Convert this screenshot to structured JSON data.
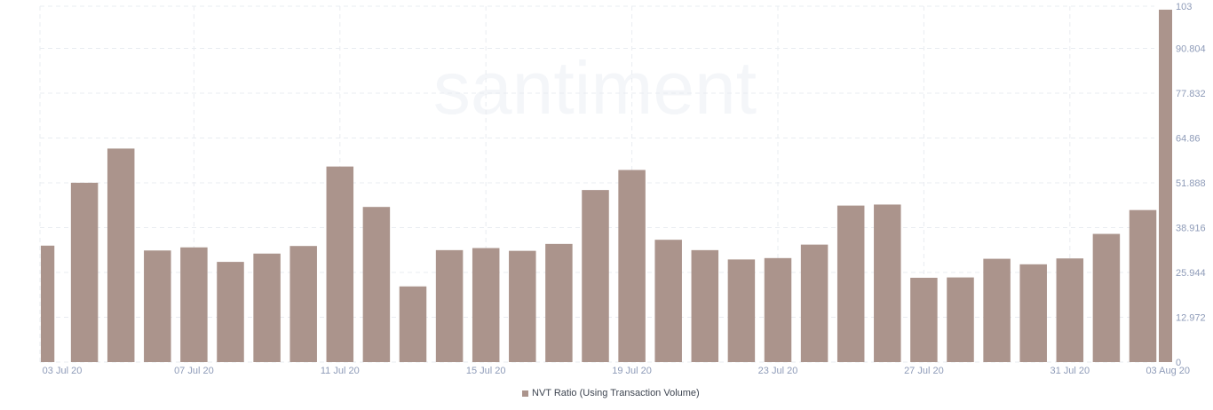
{
  "watermark": "santiment",
  "legend": {
    "label": "NVT Ratio (Using Transaction Volume)"
  },
  "colors": {
    "bar": "#ab948c",
    "grid": "#e9ecf1",
    "tick": "#8e9bb8",
    "text": "#3d4450"
  },
  "chart_data": {
    "type": "bar",
    "grid": true,
    "legend_position": "bottom-center",
    "y_axis_side": "right",
    "ylim": [
      0,
      103
    ],
    "y_ticks": [
      "0",
      "12.972",
      "25.944",
      "38.916",
      "51.888",
      "64.86",
      "77.832",
      "90.804",
      "103"
    ],
    "x_tick_labels": [
      {
        "date": "2020-07-03",
        "label": "03 Jul 20"
      },
      {
        "date": "2020-07-07",
        "label": "07 Jul 20"
      },
      {
        "date": "2020-07-11",
        "label": "11 Jul 20"
      },
      {
        "date": "2020-07-15",
        "label": "15 Jul 20"
      },
      {
        "date": "2020-07-19",
        "label": "19 Jul 20"
      },
      {
        "date": "2020-07-23",
        "label": "23 Jul 20"
      },
      {
        "date": "2020-07-27",
        "label": "27 Jul 20"
      },
      {
        "date": "2020-07-31",
        "label": "31 Jul 20"
      },
      {
        "date": "2020-08-03",
        "label": "03 Aug 20"
      }
    ],
    "series": [
      {
        "name": "NVT Ratio (Using Transaction Volume)",
        "x": [
          "2020-07-03",
          "2020-07-04",
          "2020-07-05",
          "2020-07-06",
          "2020-07-07",
          "2020-07-08",
          "2020-07-09",
          "2020-07-10",
          "2020-07-11",
          "2020-07-12",
          "2020-07-13",
          "2020-07-14",
          "2020-07-15",
          "2020-07-16",
          "2020-07-17",
          "2020-07-18",
          "2020-07-19",
          "2020-07-20",
          "2020-07-21",
          "2020-07-22",
          "2020-07-23",
          "2020-07-24",
          "2020-07-25",
          "2020-07-26",
          "2020-07-27",
          "2020-07-28",
          "2020-07-29",
          "2020-07-30",
          "2020-07-31",
          "2020-08-01",
          "2020-08-02",
          "2020-08-03"
        ],
        "values": [
          33.7,
          51.9,
          61.8,
          32.3,
          33.2,
          29.0,
          31.4,
          33.6,
          56.6,
          44.9,
          21.9,
          32.4,
          33.0,
          32.2,
          34.2,
          49.8,
          55.6,
          35.4,
          32.4,
          29.7,
          30.1,
          34.0,
          45.3,
          45.6,
          24.4,
          24.5,
          29.9,
          28.3,
          30.0,
          37.1,
          44.0,
          102.0
        ]
      }
    ]
  }
}
